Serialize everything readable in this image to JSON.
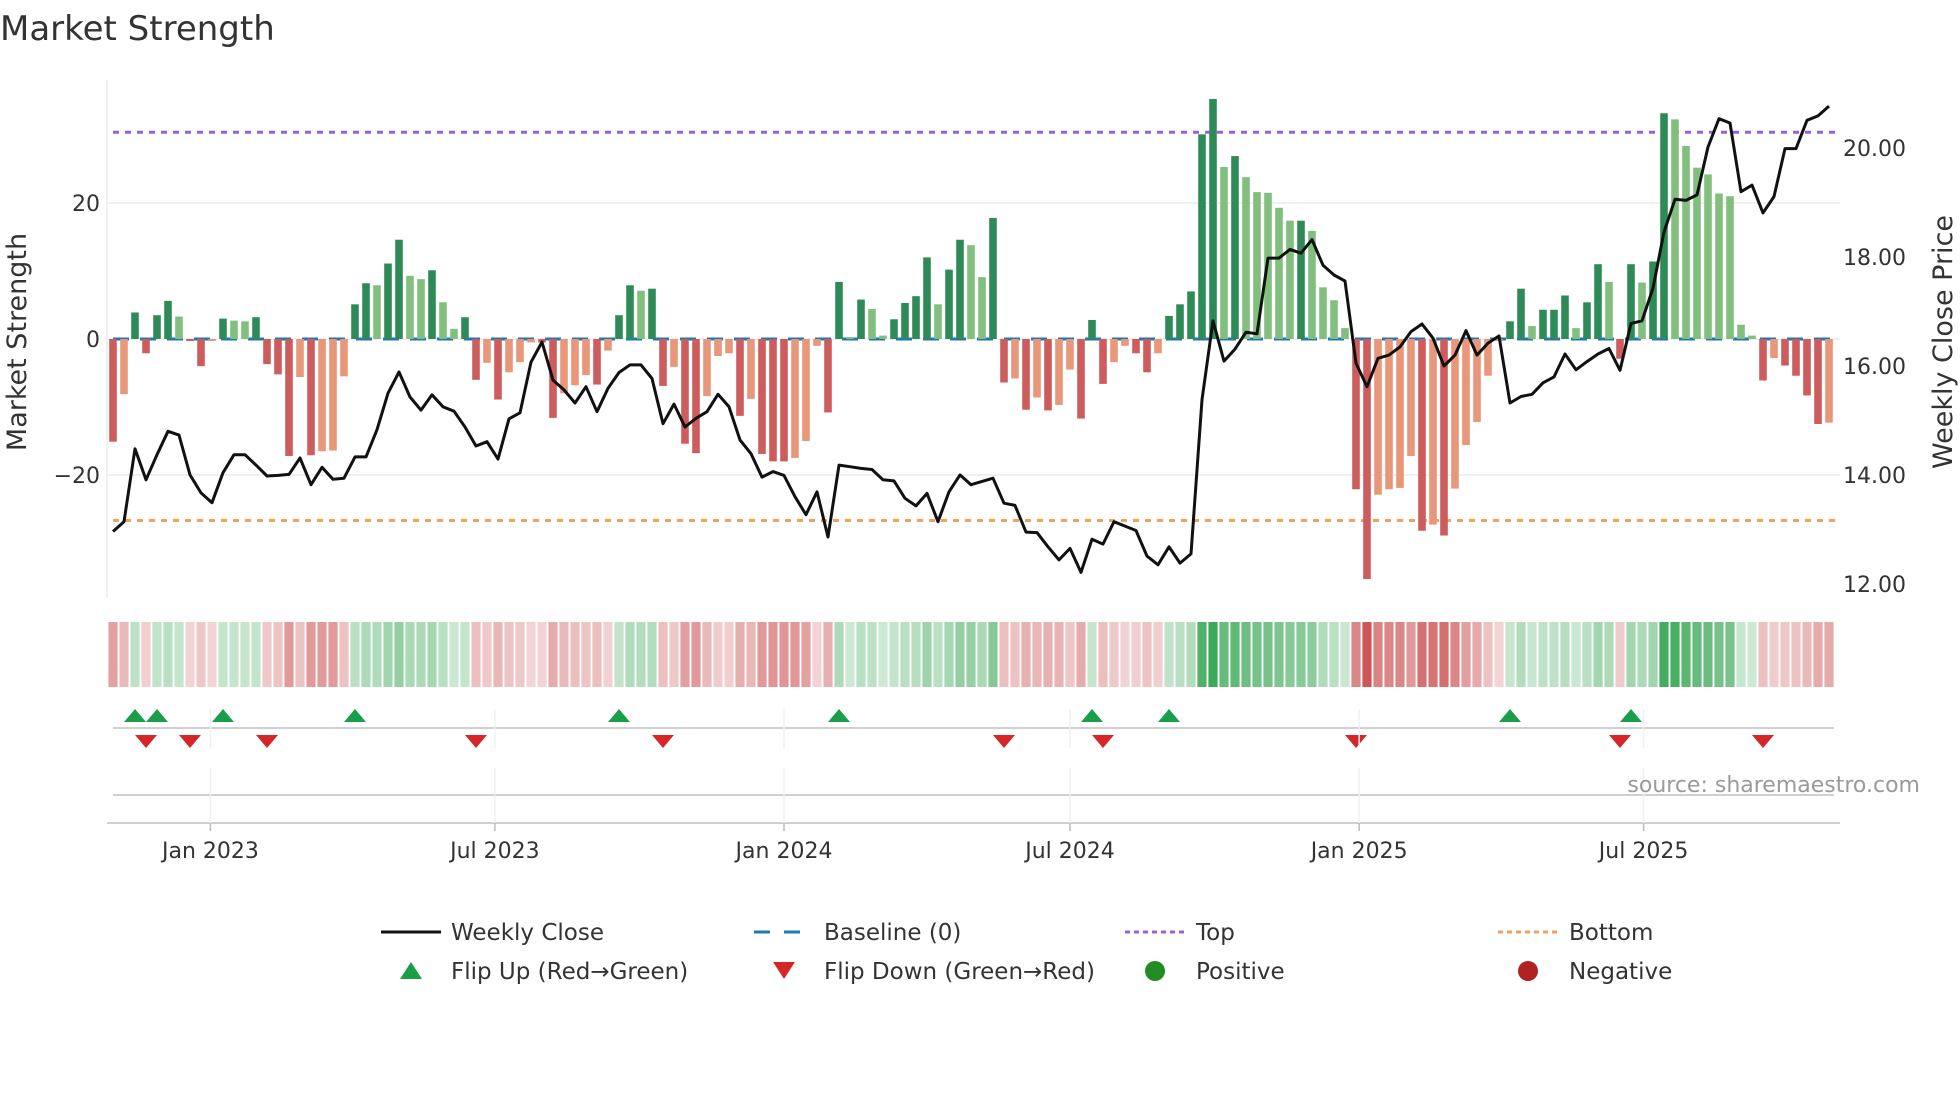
{
  "chart_data": {
    "type": "bar",
    "title": "Market Strength",
    "ylabel": "Market Strength",
    "y2label": "Weekly Close Price",
    "frequency": "weekly",
    "start_date": "2022-10-31",
    "ylim": [
      -38,
      38
    ],
    "y2lim": [
      11.74,
      21.25
    ],
    "yticks": [
      {
        "value": -20,
        "label": "−20"
      },
      {
        "value": 0,
        "label": "0"
      },
      {
        "value": 20,
        "label": "20"
      }
    ],
    "y2ticks": [
      {
        "value": 12,
        "label": "12.00"
      },
      {
        "value": 14,
        "label": "14.00"
      },
      {
        "value": 16,
        "label": "16.00"
      },
      {
        "value": 18,
        "label": "18.00"
      },
      {
        "value": 20,
        "label": "20.00"
      }
    ],
    "xticks": [
      {
        "date": "2023-01-01",
        "label": "Jan 2023"
      },
      {
        "date": "2023-07-01",
        "label": "Jul 2023"
      },
      {
        "date": "2024-01-01",
        "label": "Jan 2024"
      },
      {
        "date": "2024-07-01",
        "label": "Jul 2024"
      },
      {
        "date": "2025-01-01",
        "label": "Jan 2025"
      },
      {
        "date": "2025-07-01",
        "label": "Jul 2025"
      }
    ],
    "top_level": 30.4,
    "bottom_level": -26.7,
    "baseline": 0,
    "strength": [
      -15.1,
      -8.1,
      3.9,
      -2.1,
      3.5,
      5.6,
      3.3,
      -0.3,
      -4.0,
      -0.3,
      3.0,
      2.7,
      2.6,
      3.2,
      -3.7,
      -5.2,
      -17.2,
      -5.6,
      -17.1,
      -16.5,
      -16.4,
      -5.5,
      5.1,
      8.2,
      7.9,
      11.1,
      14.6,
      9.3,
      8.8,
      10.1,
      5.4,
      1.5,
      3.2,
      -6.0,
      -3.5,
      -8.9,
      -4.9,
      -3.4,
      -0.5,
      -0.5,
      -11.6,
      -8.0,
      -6.8,
      -5.3,
      -6.7,
      -1.7,
      3.5,
      7.9,
      7.1,
      7.4,
      -6.9,
      -4.1,
      -15.4,
      -16.8,
      -8.4,
      -2.5,
      -2.1,
      -11.3,
      -8.8,
      -16.9,
      -18.0,
      -18.0,
      -17.5,
      -15.0,
      -1.0,
      -10.8,
      8.4,
      0.3,
      5.8,
      4.4,
      0.5,
      2.9,
      5.3,
      6.3,
      12.0,
      5.1,
      10.2,
      14.6,
      13.8,
      9.1,
      17.8,
      -6.4,
      -5.8,
      -10.4,
      -8.6,
      -10.5,
      -9.7,
      -4.5,
      -11.7,
      2.8,
      -6.6,
      -3.4,
      -1.0,
      -2.1,
      -4.9,
      -2.1,
      3.4,
      5.1,
      7.0,
      30.1,
      35.3,
      25.3,
      26.9,
      23.8,
      21.6,
      21.5,
      19.3,
      17.4,
      17.4,
      15.9,
      7.6,
      5.7,
      1.6,
      -22.1,
      -35.3,
      -22.9,
      -22.1,
      -21.9,
      -17.2,
      -28.2,
      -27.3,
      -28.9,
      -22.0,
      -15.6,
      -12.2,
      -5.4,
      -0.3,
      2.6,
      7.4,
      1.9,
      4.3,
      4.3,
      6.4,
      1.6,
      5.4,
      11.0,
      8.4,
      -2.9,
      11.0,
      8.3,
      11.4,
      33.2,
      32.3,
      28.4,
      25.2,
      24.2,
      21.4,
      21.0,
      2.1,
      0.5,
      -6.1,
      -2.8,
      -3.9,
      -5.4,
      -8.3,
      -12.5,
      -12.3
    ],
    "weekly_close": [
      12.96,
      13.14,
      14.48,
      13.91,
      14.37,
      14.8,
      14.73,
      14.0,
      13.67,
      13.49,
      14.04,
      14.37,
      14.37,
      14.18,
      13.98,
      13.99,
      14.01,
      14.31,
      13.82,
      14.14,
      13.92,
      13.94,
      14.33,
      14.33,
      14.83,
      15.5,
      15.89,
      15.43,
      15.19,
      15.47,
      15.25,
      15.17,
      14.88,
      14.53,
      14.61,
      14.29,
      15.03,
      15.14,
      16.07,
      16.44,
      15.74,
      15.56,
      15.32,
      15.62,
      15.16,
      15.59,
      15.88,
      16.02,
      16.02,
      15.77,
      14.94,
      15.3,
      14.88,
      15.04,
      15.16,
      15.48,
      15.25,
      14.64,
      14.39,
      13.96,
      14.06,
      13.99,
      13.6,
      13.27,
      13.69,
      12.86,
      14.18,
      14.15,
      14.12,
      14.1,
      13.91,
      13.89,
      13.57,
      13.43,
      13.66,
      13.14,
      13.69,
      14.0,
      13.82,
      13.88,
      13.94,
      13.48,
      13.44,
      12.95,
      12.94,
      12.68,
      12.44,
      12.65,
      12.21,
      12.82,
      12.73,
      13.14,
      13.06,
      12.98,
      12.51,
      12.35,
      12.68,
      12.38,
      12.55,
      15.38,
      16.83,
      16.09,
      16.31,
      16.62,
      16.59,
      17.98,
      17.98,
      18.14,
      18.07,
      18.32,
      17.85,
      17.67,
      17.56,
      16.05,
      15.62,
      16.14,
      16.2,
      16.35,
      16.63,
      16.77,
      16.51,
      16.0,
      16.2,
      16.65,
      16.2,
      16.42,
      16.55,
      15.32,
      15.44,
      15.48,
      15.69,
      15.8,
      16.22,
      15.93,
      16.08,
      16.22,
      16.32,
      15.92,
      16.78,
      16.83,
      17.43,
      18.46,
      19.06,
      19.04,
      19.14,
      20.02,
      20.54,
      20.46,
      19.2,
      19.32,
      18.81,
      19.11,
      19.99,
      19.99,
      20.51,
      20.59,
      20.77
    ],
    "legend": {
      "placement": "bottom",
      "items": [
        {
          "key": "close",
          "label": "Weekly Close"
        },
        {
          "key": "baseline",
          "label": "Baseline (0)"
        },
        {
          "key": "top",
          "label": "Top"
        },
        {
          "key": "bottom",
          "label": "Bottom"
        },
        {
          "key": "flip_up",
          "label": "Flip Up (Red→Green)"
        },
        {
          "key": "flip_down",
          "label": "Flip Down (Green→Red)"
        },
        {
          "key": "positive",
          "label": "Positive"
        },
        {
          "key": "negative",
          "label": "Negative"
        }
      ]
    },
    "source": "source: sharemaestro.com"
  },
  "colors": {
    "green_rising": "#2e8b57",
    "green_falling": "#82bf7e",
    "red_falling": "#cd5c5c",
    "red_rising": "#e8977a",
    "close": "#111111",
    "baseline": "#1f77b4",
    "top": "#9b5fe0",
    "bottom": "#f0a060",
    "flip_up": "#1a9e4a",
    "flip_down": "#d62728",
    "positive": "#228b22",
    "negative": "#b22222",
    "grid": "#eef1f4"
  }
}
